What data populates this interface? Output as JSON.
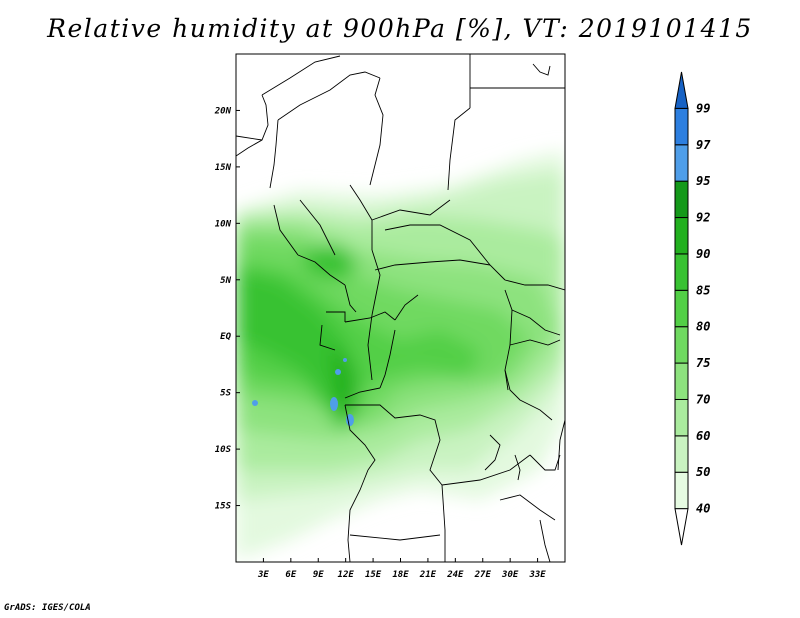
{
  "title": "Relative humidity at 900hPa [%], VT: 2019101415",
  "credit": "GrADS: IGES/COLA",
  "map": {
    "lon_range": [
      0,
      36
    ],
    "lat_range": [
      -20,
      25
    ],
    "lon_ticks": [
      "3E",
      "6E",
      "9E",
      "12E",
      "15E",
      "18E",
      "21E",
      "24E",
      "27E",
      "30E",
      "33E"
    ],
    "lat_ticks": [
      "20N",
      "15N",
      "10N",
      "5N",
      "EQ",
      "5S",
      "10S",
      "15S"
    ]
  },
  "colorbar": {
    "levels": [
      "40",
      "50",
      "60",
      "70",
      "75",
      "80",
      "85",
      "90",
      "92",
      "95",
      "97",
      "99"
    ],
    "colors": [
      "#ffffff",
      "#e6fbe2",
      "#c9f3c1",
      "#aaeb9e",
      "#8de27e",
      "#6fd960",
      "#52cf46",
      "#38c232",
      "#22b01f",
      "#14991a",
      "#4f9ee9",
      "#2d7fe0",
      "#1762c4"
    ]
  }
}
